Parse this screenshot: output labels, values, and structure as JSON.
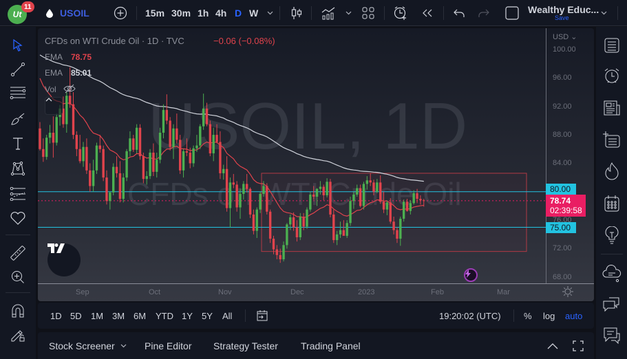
{
  "topbar": {
    "notification_count": "11",
    "logo_text": "Ut",
    "symbol": "USOIL",
    "timeframes": [
      "15m",
      "30m",
      "1h",
      "4h",
      "D",
      "W"
    ],
    "active_timeframe": "D",
    "layout_name": "Wealthy Educ...",
    "layout_save": "Save"
  },
  "legend": {
    "title": "CFDs on WTI Crude Oil · 1D · TVC",
    "change": "−0.06 (−0.08%)",
    "indicators": [
      {
        "label": "EMA",
        "value": "78.75",
        "color": "#e0434c"
      },
      {
        "label": "EMA",
        "value": "85.01",
        "color": "#d1d4dc"
      },
      {
        "label": "Vol",
        "value": ""
      }
    ]
  },
  "watermark": {
    "symbol": "USOIL, 1D",
    "description": "CFDs on WTI Crude Oil"
  },
  "price_scale": {
    "currency": "USD",
    "labels": [
      "100.00",
      "96.00",
      "92.00",
      "88.00",
      "84.00",
      "80.00",
      "76.00",
      "72.00",
      "68.00"
    ],
    "tags": {
      "upper_line": "80.00",
      "lower_line": "75.00",
      "last_price": "78.74",
      "countdown": "02:39:58"
    }
  },
  "time_axis": {
    "labels": [
      "Sep",
      "Oct",
      "Nov",
      "Dec",
      "2023",
      "Feb",
      "Mar"
    ]
  },
  "rangebar": {
    "ranges": [
      "1D",
      "5D",
      "1M",
      "3M",
      "6M",
      "YTD",
      "1Y",
      "5Y",
      "All"
    ],
    "clock": "19:20:02 (UTC)",
    "percent": "%",
    "log": "log",
    "auto": "auto"
  },
  "panelbar": {
    "tabs": [
      "Stock Screener",
      "Pine Editor",
      "Strategy Tester",
      "Trading Panel"
    ]
  },
  "colors": {
    "up": "#4caf50",
    "down": "#e0434c",
    "accent": "#2962ff",
    "hline": "#22c3e1",
    "last_price": "#e91e63",
    "ema_fast": "#e0434c",
    "ema_slow": "#d1d4dc",
    "rect": "#b23a45"
  },
  "chart_data": {
    "type": "candlestick",
    "title": "CFDs on WTI Crude Oil · 1D · TVC",
    "ylabel": "USD",
    "ylim": [
      68,
      100
    ],
    "x_ticks": [
      "Sep",
      "Oct",
      "Nov",
      "Dec",
      "2023",
      "Feb",
      "Mar"
    ],
    "horizontal_lines": [
      80.0,
      75.0
    ],
    "last_price": 78.74,
    "rectangle": {
      "start": "late Nov",
      "end": "late Feb",
      "top": 82.6,
      "bottom": 71.6
    },
    "candles_ohlc": [
      [
        88.9,
        89.8,
        85.8,
        86.0
      ],
      [
        86.0,
        87.5,
        84.2,
        84.9
      ],
      [
        84.9,
        88.0,
        84.5,
        87.6
      ],
      [
        87.6,
        89.4,
        86.8,
        88.3
      ],
      [
        88.3,
        90.6,
        84.8,
        86.9
      ],
      [
        86.9,
        91.0,
        86.5,
        90.5
      ],
      [
        90.5,
        92.2,
        89.3,
        91.7
      ],
      [
        91.7,
        93.4,
        89.0,
        89.5
      ],
      [
        89.5,
        94.0,
        88.3,
        93.5
      ],
      [
        93.5,
        97.5,
        91.8,
        92.3
      ],
      [
        92.3,
        94.0,
        87.4,
        88.0
      ],
      [
        88.0,
        88.5,
        85.0,
        86.0
      ],
      [
        86.0,
        88.0,
        84.0,
        84.3
      ],
      [
        84.3,
        87.0,
        83.5,
        86.3
      ],
      [
        86.3,
        87.5,
        82.5,
        83.0
      ],
      [
        83.0,
        84.0,
        80.0,
        80.8
      ],
      [
        80.8,
        84.5,
        80.0,
        83.0
      ],
      [
        83.0,
        86.9,
        82.5,
        86.5
      ],
      [
        86.5,
        88.0,
        85.5,
        86.0
      ],
      [
        86.0,
        86.5,
        81.5,
        82.0
      ],
      [
        82.0,
        83.0,
        78.2,
        78.7
      ],
      [
        78.7,
        80.0,
        77.5,
        79.9
      ],
      [
        79.9,
        84.0,
        79.5,
        83.5
      ],
      [
        83.5,
        85.0,
        82.0,
        82.6
      ],
      [
        82.6,
        84.3,
        78.5,
        79.0
      ],
      [
        79.0,
        82.6,
        78.5,
        82.0
      ],
      [
        82.0,
        86.0,
        81.5,
        85.7
      ],
      [
        85.7,
        88.5,
        85.0,
        87.5
      ],
      [
        87.5,
        88.0,
        85.6,
        85.9
      ],
      [
        85.9,
        89.5,
        85.4,
        89.0
      ],
      [
        89.0,
        89.5,
        84.5,
        85.0
      ],
      [
        85.0,
        85.5,
        81.2,
        81.8
      ],
      [
        81.8,
        82.9,
        81.0,
        82.2
      ],
      [
        82.2,
        86.0,
        81.8,
        85.5
      ],
      [
        85.5,
        86.8,
        82.2,
        82.8
      ],
      [
        82.8,
        85.5,
        82.0,
        84.5
      ],
      [
        84.5,
        89.0,
        84.0,
        88.3
      ],
      [
        88.3,
        92.3,
        87.5,
        91.5
      ],
      [
        91.5,
        93.7,
        89.5,
        90.0
      ],
      [
        90.0,
        90.5,
        85.8,
        86.3
      ],
      [
        86.3,
        89.5,
        84.6,
        88.9
      ],
      [
        88.9,
        91.0,
        86.8,
        87.3
      ],
      [
        87.3,
        88.0,
        82.5,
        83.0
      ],
      [
        83.0,
        86.0,
        82.0,
        85.7
      ],
      [
        85.7,
        87.5,
        85.0,
        85.5
      ],
      [
        85.5,
        86.2,
        83.3,
        84.0
      ],
      [
        84.0,
        86.5,
        83.5,
        86.1
      ],
      [
        86.1,
        88.0,
        85.6,
        86.5
      ],
      [
        86.5,
        89.5,
        86.0,
        89.2
      ],
      [
        89.2,
        93.8,
        88.7,
        91.7
      ],
      [
        91.7,
        92.5,
        89.2,
        89.5
      ],
      [
        89.5,
        90.0,
        85.0,
        85.4
      ],
      [
        85.4,
        89.0,
        84.3,
        88.0
      ],
      [
        88.0,
        89.5,
        86.8,
        87.0
      ],
      [
        87.0,
        88.5,
        81.8,
        82.6
      ],
      [
        82.6,
        83.8,
        81.7,
        83.2
      ],
      [
        83.2,
        85.0,
        77.2,
        77.7
      ],
      [
        77.7,
        82.0,
        75.0,
        81.3
      ],
      [
        81.3,
        82.5,
        80.5,
        81.0
      ],
      [
        81.0,
        81.5,
        77.2,
        77.8
      ],
      [
        77.8,
        80.5,
        76.2,
        79.7
      ],
      [
        79.7,
        81.5,
        78.9,
        81.1
      ],
      [
        81.1,
        82.5,
        79.9,
        80.4
      ],
      [
        80.4,
        80.6,
        76.3,
        76.8
      ],
      [
        76.8,
        77.5,
        74.0,
        74.5
      ],
      [
        74.5,
        77.8,
        73.5,
        77.5
      ],
      [
        77.5,
        80.0,
        77.0,
        79.7
      ],
      [
        79.7,
        81.5,
        79.3,
        80.8
      ],
      [
        80.8,
        81.2,
        76.8,
        77.2
      ],
      [
        77.2,
        77.5,
        72.8,
        73.4
      ],
      [
        73.4,
        73.8,
        71.2,
        71.9
      ],
      [
        71.9,
        72.5,
        70.5,
        71.1
      ],
      [
        71.1,
        72.0,
        70.0,
        70.5
      ],
      [
        70.5,
        73.0,
        70.2,
        72.5
      ],
      [
        72.5,
        75.6,
        72.0,
        75.4
      ],
      [
        75.4,
        76.8,
        74.6,
        76.4
      ],
      [
        76.4,
        77.1,
        74.5,
        75.0
      ],
      [
        75.0,
        76.0,
        73.0,
        73.6
      ],
      [
        73.6,
        77.0,
        73.2,
        76.5
      ],
      [
        76.5,
        77.0,
        74.6,
        75.1
      ],
      [
        75.1,
        77.8,
        74.8,
        77.5
      ],
      [
        77.5,
        80.0,
        77.2,
        79.6
      ],
      [
        79.6,
        80.8,
        78.9,
        79.3
      ],
      [
        79.3,
        80.5,
        78.0,
        80.4
      ],
      [
        80.4,
        81.5,
        79.6,
        80.7
      ],
      [
        80.7,
        81.0,
        78.8,
        79.5
      ],
      [
        79.5,
        81.9,
        79.2,
        81.4
      ],
      [
        81.4,
        81.8,
        76.4,
        76.8
      ],
      [
        76.8,
        77.5,
        72.8,
        73.2
      ],
      [
        73.2,
        74.5,
        72.5,
        74.0
      ],
      [
        74.0,
        75.8,
        73.5,
        74.6
      ],
      [
        74.6,
        76.0,
        74.2,
        73.8
      ],
      [
        73.8,
        76.0,
        73.5,
        75.6
      ],
      [
        75.6,
        79.3,
        75.2,
        78.7
      ],
      [
        78.7,
        80.0,
        77.6,
        79.6
      ],
      [
        79.6,
        81.0,
        79.3,
        80.5
      ],
      [
        80.5,
        81.0,
        77.8,
        78.0
      ],
      [
        78.0,
        81.4,
        77.5,
        81.1
      ],
      [
        81.1,
        82.2,
        80.3,
        81.6
      ],
      [
        81.6,
        82.6,
        80.8,
        81.3
      ],
      [
        81.3,
        81.7,
        79.5,
        80.0
      ],
      [
        80.0,
        81.8,
        79.8,
        81.3
      ],
      [
        81.3,
        82.3,
        78.3,
        78.6
      ],
      [
        78.6,
        80.0,
        77.0,
        77.5
      ],
      [
        77.5,
        78.8,
        76.7,
        78.5
      ],
      [
        78.5,
        79.1,
        75.5,
        75.8
      ],
      [
        75.8,
        76.5,
        74.0,
        74.6
      ],
      [
        74.6,
        75.0,
        72.8,
        73.4
      ],
      [
        73.4,
        76.5,
        72.4,
        76.2
      ],
      [
        76.2,
        78.9,
        75.8,
        78.6
      ],
      [
        78.6,
        79.0,
        77.2,
        77.3
      ],
      [
        77.3,
        78.8,
        76.8,
        78.4
      ],
      [
        78.4,
        80.2,
        78.2,
        79.8
      ],
      [
        79.8,
        80.4,
        78.4,
        79.0
      ],
      [
        79.0,
        79.5,
        78.2,
        78.8
      ],
      [
        78.8,
        79.0,
        77.9,
        78.74
      ]
    ],
    "ema_fast_label": "EMA 78.75",
    "ema_slow_label": "EMA 85.01"
  }
}
